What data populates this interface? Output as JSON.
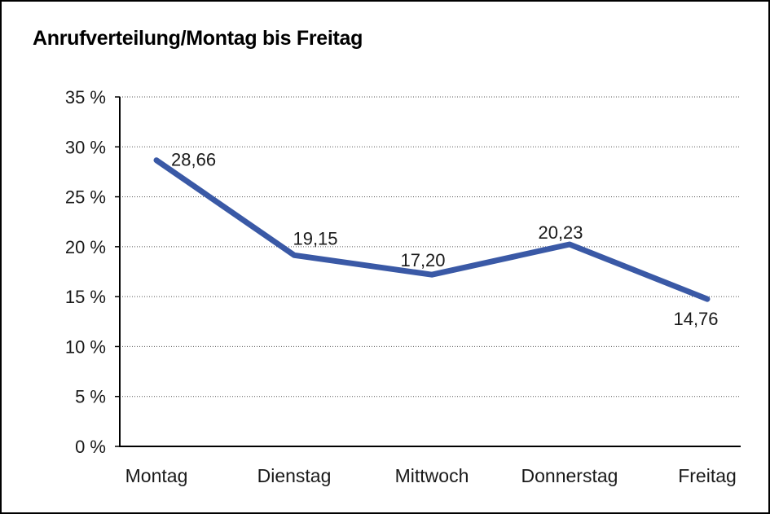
{
  "window": {
    "background_color": "#ffffff",
    "border_color": "#000000"
  },
  "chart_data": {
    "type": "line",
    "title": "Anrufverteilung/Montag bis Freitag",
    "categories": [
      "Montag",
      "Dienstag",
      "Mittwoch",
      "Donnerstag",
      "Freitag"
    ],
    "series": [
      {
        "name": "Anrufverteilung",
        "values": [
          28.66,
          19.15,
          17.2,
          20.23,
          14.76
        ]
      }
    ],
    "point_labels": [
      "28,66",
      "19,15",
      "17,20",
      "20,23",
      "14,76"
    ],
    "point_label_positions": [
      "right",
      "above",
      "above",
      "above",
      "below"
    ],
    "ytick_labels": [
      "0 %",
      "5 %",
      "10 %",
      "15 %",
      "20 %",
      "25 %",
      "30 %",
      "35 %"
    ],
    "ytick_values": [
      0,
      5,
      10,
      15,
      20,
      25,
      30,
      35
    ],
    "ylim": [
      0,
      35
    ],
    "xlabel": "",
    "ylabel": "",
    "grid": "horizontal-dotted",
    "legend_position": "none",
    "line_color": "#3A59A6",
    "grid_color": "#555555",
    "axis_color": "#000000",
    "text_color": "#1a1a1a"
  }
}
